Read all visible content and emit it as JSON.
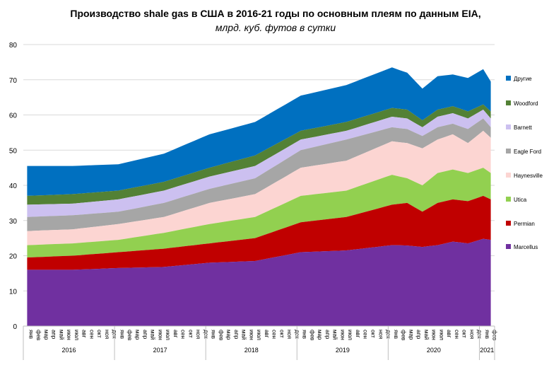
{
  "chart_data": {
    "type": "area",
    "title": "Производство shale gas в США в 2016-21 годы по основным  плеям по данным  EIA,",
    "subtitle": "млрд. куб. футов в сутки",
    "ylim": [
      0,
      80
    ],
    "yticks": [
      0,
      10,
      20,
      30,
      40,
      50,
      60,
      70,
      80
    ],
    "grid": true,
    "legend_position": "right",
    "months": [
      "янв",
      "фев",
      "мар",
      "апр",
      "май",
      "июн",
      "июл",
      "авг",
      "сен",
      "окт",
      "ноя",
      "дек"
    ],
    "year_labels": [
      "2016",
      "2017",
      "2018",
      "2019",
      "2020",
      "2021"
    ],
    "x_count": 62,
    "stack_order": [
      "Marcellus",
      "Permian",
      "Utica",
      "Haynesville",
      "Eagle Ford",
      "Barnett",
      "Woodford",
      "Другие"
    ],
    "legend_order": [
      "Другие",
      "Woodford",
      "Barnett",
      "Eagle Ford",
      "Haynesville",
      "Utica",
      "Permian",
      "Marcellus"
    ],
    "colors": {
      "Marcellus": "#7030a0",
      "Permian": "#c00000",
      "Utica": "#92d050",
      "Haynesville": "#fcd5d2",
      "Eagle Ford": "#a6a6a6",
      "Barnett": "#ccc0f0",
      "Woodford": "#538135",
      "Другие": "#0070c0"
    },
    "key_totals": {
      "x": [
        0,
        6,
        12,
        18,
        24,
        30,
        36,
        42,
        48,
        50,
        52,
        54,
        56,
        58,
        60,
        61
      ],
      "Marcellus": [
        16.0,
        16.0,
        16.5,
        16.8,
        18.0,
        18.5,
        21.0,
        21.5,
        23.0,
        22.9,
        22.5,
        23.0,
        24.0,
        23.5,
        24.8,
        24.5
      ],
      "Permian": [
        19.5,
        20.0,
        21.0,
        22.0,
        23.5,
        25.0,
        29.5,
        31.0,
        34.5,
        35.0,
        32.5,
        35.0,
        36.0,
        35.5,
        37.0,
        36.0
      ],
      "Utica": [
        23.0,
        23.5,
        24.5,
        26.5,
        29.0,
        31.0,
        37.0,
        38.5,
        43.0,
        42.0,
        40.0,
        43.5,
        44.5,
        43.5,
        45.0,
        43.5
      ],
      "Haynesville": [
        27.0,
        27.5,
        29.0,
        31.0,
        35.0,
        37.5,
        45.0,
        47.0,
        52.5,
        52.0,
        50.5,
        53.0,
        54.5,
        52.0,
        55.5,
        53.5
      ],
      "Eagle Ford": [
        31.0,
        31.5,
        32.5,
        35.0,
        39.0,
        42.0,
        50.0,
        53.0,
        56.5,
        56.0,
        54.0,
        56.5,
        57.5,
        56.0,
        59.0,
        56.5
      ],
      "Barnett": [
        34.5,
        34.8,
        36.0,
        38.5,
        42.5,
        45.5,
        53.0,
        55.5,
        59.5,
        59.0,
        56.5,
        59.5,
        60.5,
        59.0,
        61.5,
        59.0
      ],
      "Woodford": [
        37.0,
        37.5,
        38.5,
        41.0,
        45.0,
        48.5,
        55.5,
        58.0,
        62.0,
        61.5,
        58.5,
        61.5,
        62.5,
        61.0,
        63.0,
        61.0
      ],
      "Другие": [
        45.5,
        45.5,
        46.0,
        49.0,
        54.5,
        58.0,
        65.5,
        68.5,
        73.5,
        72.0,
        67.5,
        71.0,
        71.5,
        70.5,
        73.0,
        69.5
      ]
    }
  }
}
